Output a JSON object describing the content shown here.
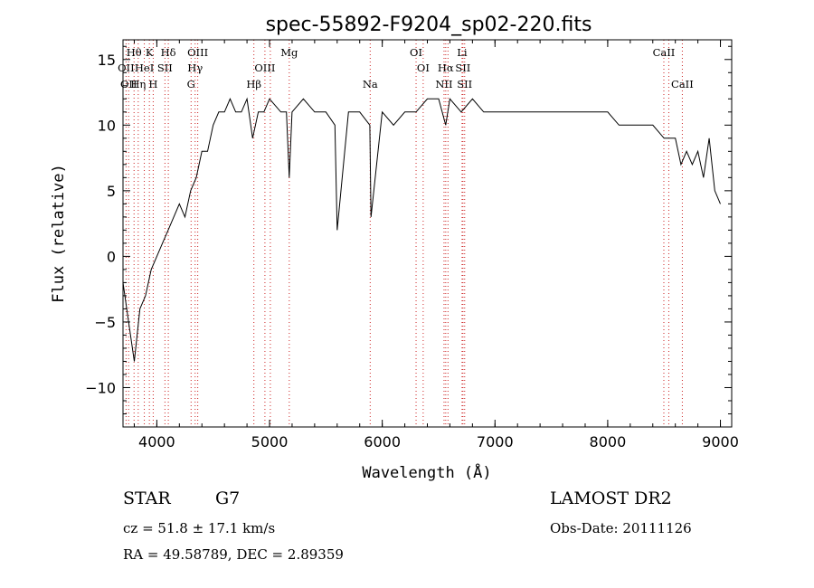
{
  "chart_data": {
    "type": "line",
    "title": "spec-55892-F9204_sp02-220.fits",
    "xlabel": "Wavelength (Å)",
    "ylabel": "Flux (relative)",
    "xlim": [
      3700,
      9100
    ],
    "ylim": [
      -13,
      16.5
    ],
    "xticks": [
      "4000",
      "5000",
      "6000",
      "7000",
      "8000",
      "9000"
    ],
    "yticks": [
      "-10",
      "-5",
      "0",
      "5",
      "10",
      "15"
    ],
    "series": [
      {
        "x": [
          3700,
          3750,
          3800,
          3850,
          3900,
          3950,
          4000,
          4050,
          4100,
          4150,
          4200,
          4250,
          4300,
          4350,
          4400,
          4450,
          4500,
          4550,
          4600,
          4650,
          4700,
          4750,
          4800,
          4850,
          4900,
          4950,
          5000,
          5100,
          5150,
          5175,
          5200,
          5300,
          5400,
          5500,
          5580,
          5600,
          5700,
          5800,
          5890,
          5900,
          6000,
          6100,
          6200,
          6300,
          6400,
          6500,
          6563,
          6600,
          6700,
          6800,
          6900,
          7000,
          7100,
          7200,
          7300,
          7400,
          7500,
          7600,
          7700,
          7800,
          7900,
          8000,
          8100,
          8200,
          8300,
          8400,
          8500,
          8600,
          8650,
          8700,
          8750,
          8800,
          8850,
          8900,
          8950,
          9000
        ],
        "y": [
          -2,
          -5,
          -8,
          -4,
          -3,
          -1,
          0,
          1,
          2,
          3,
          4,
          3,
          5,
          6,
          8,
          8,
          10,
          11,
          11,
          12,
          11,
          11,
          12,
          9,
          11,
          11,
          12,
          11,
          11,
          6,
          11,
          12,
          11,
          11,
          10,
          2,
          11,
          11,
          10,
          3,
          11,
          10,
          11,
          11,
          12,
          12,
          10,
          12,
          11,
          12,
          11,
          11,
          11,
          11,
          11,
          11,
          11,
          11,
          11,
          11,
          11,
          11,
          10,
          10,
          10,
          10,
          9,
          9,
          7,
          8,
          7,
          8,
          6,
          9,
          5,
          4
        ]
      }
    ],
    "lines": [
      {
        "x": 3727,
        "labels": [
          "OII"
        ],
        "row": 2
      },
      {
        "x": 3750,
        "labels": [
          "OII"
        ],
        "row": 3
      },
      {
        "x": 3798,
        "labels": [
          "Hθ"
        ],
        "row": 1
      },
      {
        "x": 3835,
        "labels": [
          "Hη"
        ],
        "row": 3
      },
      {
        "x": 3889,
        "labels": [
          "HeI"
        ],
        "row": 2
      },
      {
        "x": 3934,
        "labels": [
          "K"
        ],
        "row": 1
      },
      {
        "x": 3968,
        "labels": [
          "H"
        ],
        "row": 3
      },
      {
        "x": 4072,
        "labels": [
          "SII"
        ],
        "row": 2
      },
      {
        "x": 4102,
        "labels": [
          "Hδ"
        ],
        "row": 1
      },
      {
        "x": 4304,
        "labels": [
          "G"
        ],
        "row": 3
      },
      {
        "x": 4340,
        "labels": [
          "Hγ"
        ],
        "row": 2
      },
      {
        "x": 4363,
        "labels": [
          "OIII"
        ],
        "row": 1
      },
      {
        "x": 4861,
        "labels": [
          "Hβ"
        ],
        "row": 3
      },
      {
        "x": 4959,
        "labels": [
          "OIII"
        ],
        "row": 2
      },
      {
        "x": 5007,
        "labels": [],
        "row": 0
      },
      {
        "x": 5175,
        "labels": [
          "Mg"
        ],
        "row": 1
      },
      {
        "x": 5893,
        "labels": [
          "Na"
        ],
        "row": 3
      },
      {
        "x": 6300,
        "labels": [
          "OI"
        ],
        "row": 1
      },
      {
        "x": 6363,
        "labels": [
          "OI"
        ],
        "row": 2
      },
      {
        "x": 6548,
        "labels": [
          "NII"
        ],
        "row": 3
      },
      {
        "x": 6563,
        "labels": [
          "Hα"
        ],
        "row": 2
      },
      {
        "x": 6583,
        "labels": [],
        "row": 0
      },
      {
        "x": 6708,
        "labels": [
          "Li"
        ],
        "row": 1
      },
      {
        "x": 6716,
        "labels": [
          "SII"
        ],
        "row": 2
      },
      {
        "x": 6731,
        "labels": [
          "SII"
        ],
        "row": 3
      },
      {
        "x": 8498,
        "labels": [
          "CaII"
        ],
        "row": 1
      },
      {
        "x": 8542,
        "labels": [],
        "row": 0
      },
      {
        "x": 8662,
        "labels": [
          "CaII"
        ],
        "row": 3
      }
    ]
  },
  "info": {
    "class": "STAR",
    "subclass": "G7",
    "cz": "cz = 51.8 ± 17.1 km/s",
    "radec": "RA =  49.58789, DEC =   2.89359",
    "survey": "LAMOST DR2",
    "obsdate": "Obs-Date: 20111126"
  },
  "colors": {
    "spectrum": "#000000",
    "line_marker": "#cc2222",
    "background": "#ffffff"
  }
}
